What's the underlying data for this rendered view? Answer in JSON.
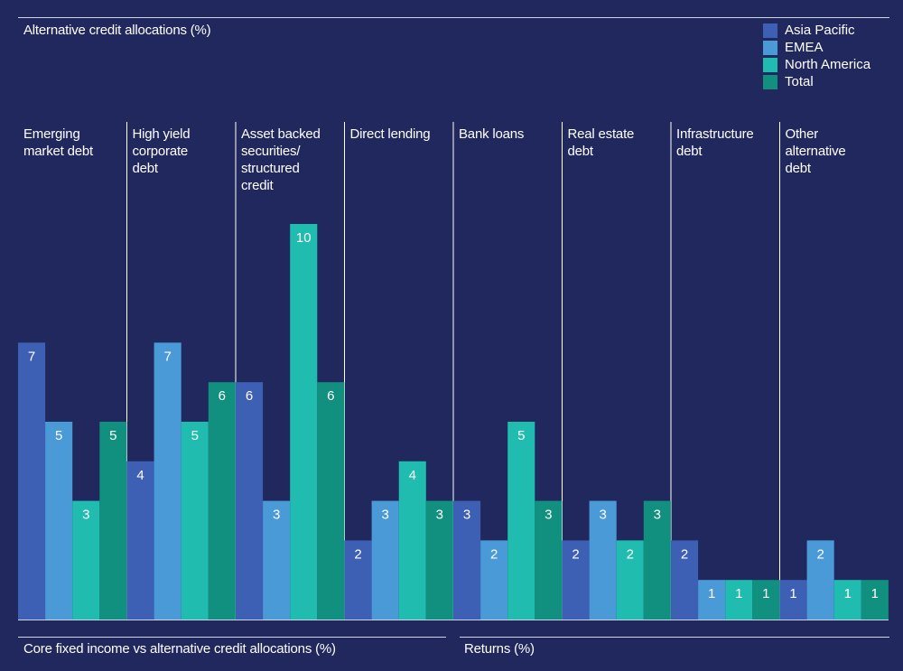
{
  "header": {
    "title": "Alternative credit allocations (%)"
  },
  "legend": [
    {
      "name": "Asia Pacific",
      "color": "#3d5fb4"
    },
    {
      "name": "EMEA",
      "color": "#4b9ad8"
    },
    {
      "name": "North America",
      "color": "#21bcb0"
    },
    {
      "name": "Total",
      "color": "#12907f"
    }
  ],
  "chart_data": {
    "type": "bar",
    "title": "Alternative credit allocations (%)",
    "xlabel": "",
    "ylabel": "",
    "ylim": [
      0,
      10
    ],
    "grid": false,
    "legend_position": "top-right",
    "categories": [
      [
        "Emerging",
        "market debt"
      ],
      [
        "High yield",
        "corporate",
        "debt"
      ],
      [
        "Asset backed",
        "securities/",
        "structured",
        "credit"
      ],
      [
        "Direct lending"
      ],
      [
        "Bank loans"
      ],
      [
        "Real estate",
        "debt"
      ],
      [
        "Infrastructure",
        "debt"
      ],
      [
        "Other",
        "alternative",
        "debt"
      ]
    ],
    "series": [
      {
        "name": "Asia Pacific",
        "values": [
          7,
          4,
          6,
          2,
          3,
          2,
          2,
          1
        ]
      },
      {
        "name": "EMEA",
        "values": [
          5,
          7,
          3,
          3,
          2,
          3,
          1,
          2
        ]
      },
      {
        "name": "North America",
        "values": [
          3,
          5,
          10,
          4,
          5,
          2,
          1,
          1
        ]
      },
      {
        "name": "Total",
        "values": [
          5,
          6,
          6,
          3,
          3,
          3,
          1,
          1
        ]
      }
    ]
  },
  "footer": {
    "left_title": "Core fixed income vs alternative credit allocations (%)",
    "right_title": "Returns (%)"
  }
}
